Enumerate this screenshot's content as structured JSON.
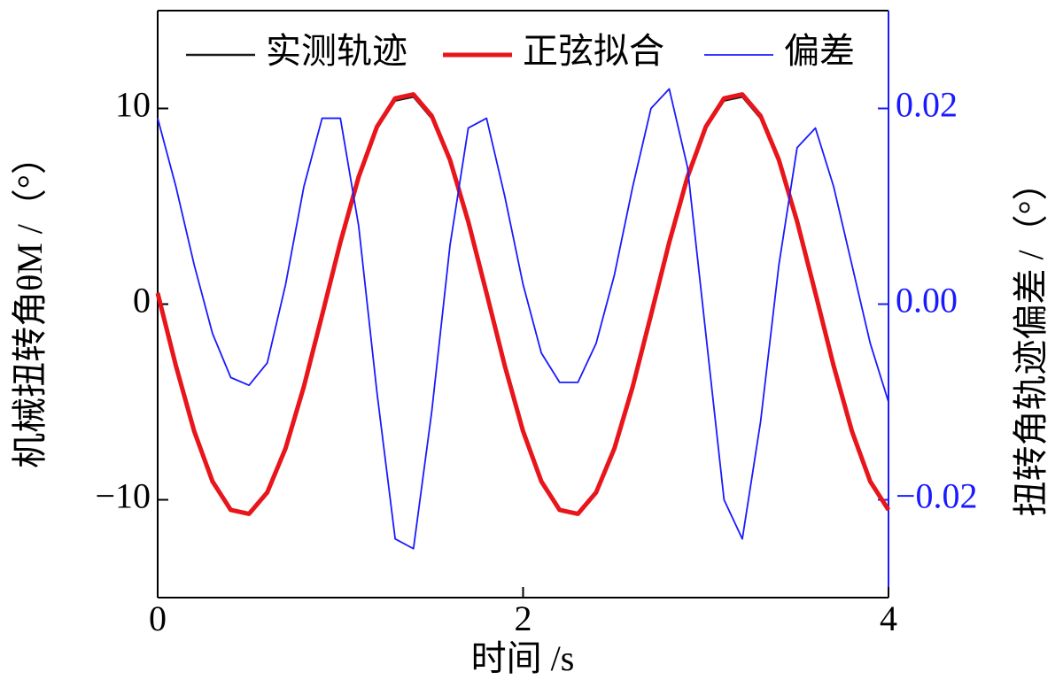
{
  "chart_data": {
    "type": "line",
    "xlabel": "时间 /s",
    "ylabel": "机械扭转角θM /（°）",
    "y2label": "扭转角轨迹偏差 /（°）",
    "x": [
      0,
      0.1,
      0.2,
      0.3,
      0.4,
      0.5,
      0.6,
      0.7,
      0.8,
      0.9,
      1.0,
      1.1,
      1.2,
      1.3,
      1.4,
      1.5,
      1.6,
      1.7,
      1.8,
      1.9,
      2.0,
      2.1,
      2.2,
      2.3,
      2.4,
      2.5,
      2.6,
      2.7,
      2.8,
      2.9,
      3.0,
      3.1,
      3.2,
      3.3,
      3.4,
      3.5,
      3.6,
      3.7,
      3.8,
      3.9,
      4.0
    ],
    "series": [
      {
        "name": "实测轨迹",
        "color": "#1a1a1a",
        "values": [
          0.6,
          -3.1,
          -6.5,
          -9.0,
          -10.5,
          -10.7,
          -9.6,
          -7.3,
          -4.2,
          -0.5,
          3.2,
          6.5,
          9.0,
          10.4,
          10.6,
          9.5,
          7.3,
          4.2,
          0.6,
          -3.1,
          -6.5,
          -9.0,
          -10.5,
          -10.7,
          -9.6,
          -7.3,
          -4.2,
          -0.5,
          3.2,
          6.5,
          9.0,
          10.4,
          10.6,
          9.5,
          7.3,
          4.2,
          0.6,
          -3.1,
          -6.5,
          -9.0,
          -10.5
        ]
      },
      {
        "name": "正弦拟合",
        "color": "#e8151b",
        "values": [
          0.56,
          -3.16,
          -6.5,
          -9.06,
          -10.52,
          -10.72,
          -9.62,
          -7.37,
          -4.22,
          -0.56,
          3.16,
          6.5,
          9.06,
          10.52,
          10.72,
          9.62,
          7.37,
          4.22,
          0.56,
          -3.16,
          -6.5,
          -9.06,
          -10.52,
          -10.72,
          -9.62,
          -7.37,
          -4.22,
          -0.56,
          3.16,
          6.5,
          9.06,
          10.52,
          10.72,
          9.62,
          7.37,
          4.22,
          0.56,
          -3.16,
          -6.5,
          -9.06,
          -10.52
        ]
      },
      {
        "name": "偏差",
        "color": "#1a1aff",
        "axis": "y2",
        "values": [
          0.019,
          0.012,
          0.004,
          -0.003,
          -0.0075,
          -0.0083,
          -0.006,
          0.002,
          0.012,
          0.019,
          0.019,
          0.008,
          -0.009,
          -0.024,
          -0.025,
          -0.011,
          0.006,
          0.018,
          0.019,
          0.011,
          0.002,
          -0.005,
          -0.008,
          -0.008,
          -0.004,
          0.003,
          0.012,
          0.02,
          0.022,
          0.014,
          -0.003,
          -0.02,
          -0.024,
          -0.012,
          0.004,
          0.016,
          0.018,
          0.012,
          0.004,
          -0.004,
          -0.01
        ]
      }
    ],
    "xlim": [
      0,
      4
    ],
    "xticks": [
      0,
      2,
      4
    ],
    "ylim": [
      -15,
      15
    ],
    "yticks": [
      {
        "value": -10,
        "label": "−10"
      },
      0,
      10
    ],
    "y2lim": [
      -0.03,
      0.03
    ],
    "y2ticks": [
      {
        "value": -0.02,
        "label": "−0.02"
      },
      {
        "value": 0,
        "label": "0.00"
      },
      {
        "value": 0.02,
        "label": "0.02"
      }
    ],
    "y2color": "#1a1aff",
    "legend": "top"
  }
}
